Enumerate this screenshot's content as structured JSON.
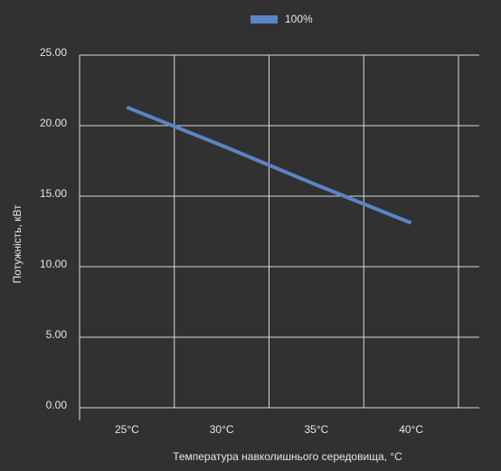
{
  "chart_data": {
    "type": "line",
    "x_label": "Температура навколишнього середовища, °C",
    "y_label": "Потужність, кВт",
    "categories": [
      "25°C",
      "30°C",
      "35°C",
      "40°C"
    ],
    "series": [
      {
        "name": "100%",
        "color": "#5b84c4",
        "values": [
          21.3,
          18.6,
          15.8,
          13.1
        ]
      }
    ],
    "ylim": [
      0,
      25
    ],
    "yticks": [
      {
        "value": 0,
        "label": "0.00"
      },
      {
        "value": 5,
        "label": "5.00"
      },
      {
        "value": 10,
        "label": "10.00"
      },
      {
        "value": 15,
        "label": "15.00"
      },
      {
        "value": 20,
        "label": "20.00"
      },
      {
        "value": 25,
        "label": "25.00"
      }
    ],
    "grid": true,
    "legend": "top"
  }
}
